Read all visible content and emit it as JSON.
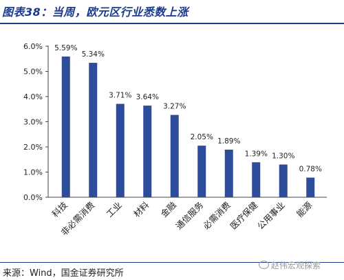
{
  "header": {
    "title": "图表38：当周，欧元区行业悉数上涨"
  },
  "footer": {
    "source": "来源：Wind，国金证券研究所",
    "watermark": "赵伟宏观探索"
  },
  "colors": {
    "bar": "#2e4c9c",
    "title": "#1a3a8c"
  },
  "chart_data": {
    "type": "bar",
    "categories": [
      "科技",
      "非必需消费",
      "工业",
      "材料",
      "金融",
      "通信服务",
      "必需消费",
      "医疗保健",
      "公用事业",
      "能源"
    ],
    "values": [
      5.59,
      5.34,
      3.71,
      3.64,
      3.27,
      2.05,
      1.89,
      1.39,
      1.3,
      0.78
    ],
    "value_labels": [
      "5.59%",
      "5.34%",
      "3.71%",
      "3.64%",
      "3.27%",
      "2.05%",
      "1.89%",
      "1.39%",
      "1.30%",
      "0.78%"
    ],
    "yticks": [
      "0.0%",
      "1.0%",
      "2.0%",
      "3.0%",
      "4.0%",
      "5.0%",
      "6.0%"
    ],
    "ylim": [
      0,
      6
    ],
    "title": "",
    "xlabel": "",
    "ylabel": "",
    "grid": false
  }
}
